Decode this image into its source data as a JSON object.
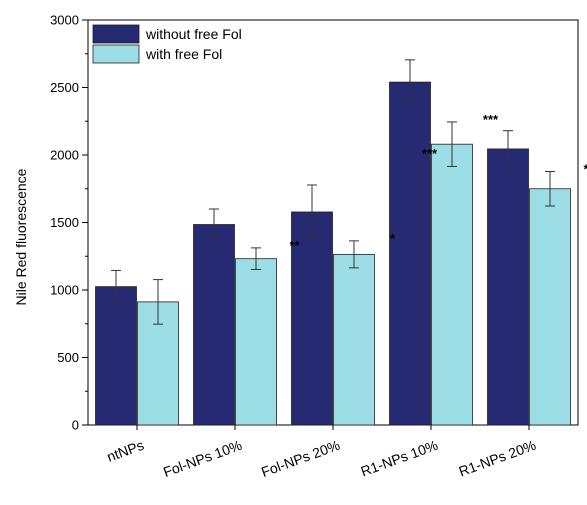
{
  "chart_data": {
    "type": "bar",
    "title": "",
    "xlabel": "",
    "ylabel": "Nile Red fluorescence",
    "ylim": [
      0,
      3000
    ],
    "yticks": [
      0,
      500,
      1000,
      1500,
      2000,
      2500,
      3000
    ],
    "categories": [
      "ntNPs",
      "Fol-NPs 10%",
      "Fol-NPs 20%",
      "R1-NPs 10%",
      "R1-NPs 20%"
    ],
    "series": [
      {
        "name": "without free Fol",
        "color": "#262a73",
        "values": [
          1025,
          1485,
          1578,
          2540,
          2045
        ],
        "errors": [
          120,
          115,
          200,
          165,
          135
        ],
        "annotations": [
          "",
          "",
          "",
          "",
          ""
        ]
      },
      {
        "name": "with free Fol",
        "color": "#9cdde6",
        "values": [
          912,
          1232,
          1264,
          2080,
          1750
        ],
        "errors": [
          165,
          80,
          100,
          165,
          128
        ],
        "annotations": [
          "",
          "**",
          "*",
          "***",
          "**"
        ]
      }
    ],
    "extra_annotations": [
      {
        "category_index": 3,
        "text": "***"
      }
    ],
    "legend_position": "top-left",
    "grid": false
  }
}
